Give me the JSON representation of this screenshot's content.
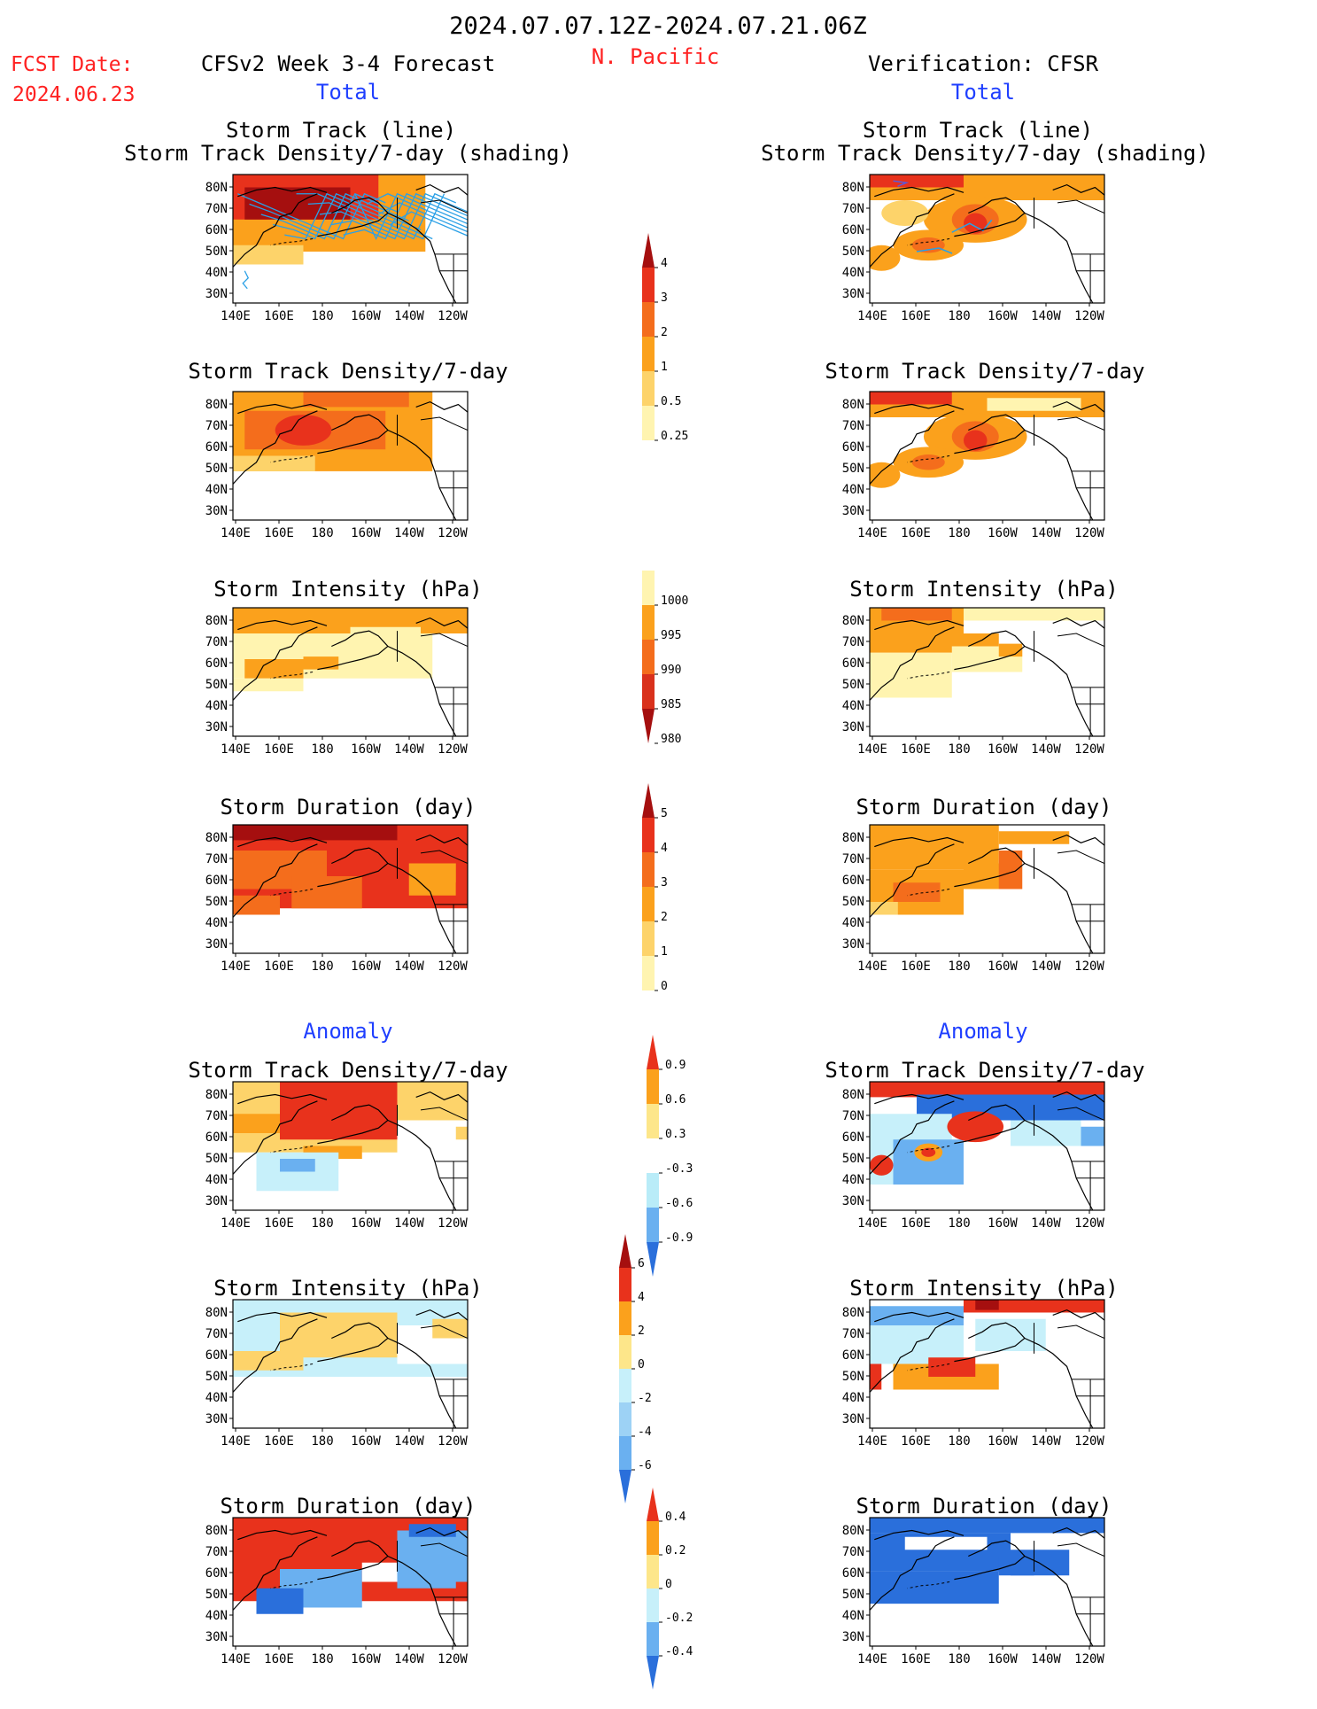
{
  "header": {
    "period": "2024.07.07.12Z-2024.07.21.06Z",
    "region": "N. Pacific",
    "fcst_label": "FCST Date:",
    "fcst_date": "2024.06.23",
    "left_title": "CFSv2 Week 3-4 Forecast",
    "right_title": "Verification: CFSR",
    "total_label": "Total",
    "anomaly_label": "Anomaly"
  },
  "axes": {
    "x_ticks": [
      "140E",
      "160E",
      "180",
      "160W",
      "140W",
      "120W"
    ],
    "y_ticks": [
      "80N",
      "70N",
      "60N",
      "50N",
      "40N",
      "30N"
    ]
  },
  "panel_titles": {
    "row1_line1": "Storm Track (line)",
    "row1_line2": "Storm Track Density/7-day (shading)",
    "density": "Storm Track Density/7-day",
    "intensity": "Storm Intensity (hPa)",
    "duration": "Storm Duration (day)"
  },
  "colorbars": {
    "density": {
      "labels": [
        "4",
        "3",
        "2",
        "1",
        "0.5",
        "0.25"
      ],
      "colors": [
        "#a50f0f",
        "#e8321c",
        "#f46d1c",
        "#fba11c",
        "#fdd36a",
        "#fff4b0"
      ]
    },
    "intensity": {
      "labels": [
        "1000",
        "995",
        "990",
        "985",
        "980"
      ],
      "colors": [
        "#fff4b0",
        "#fba11c",
        "#f46d1c",
        "#d9311c",
        "#a50f0f"
      ]
    },
    "duration": {
      "labels": [
        "5",
        "4",
        "3",
        "2",
        "1",
        "0"
      ],
      "colors": [
        "#a50f0f",
        "#e8321c",
        "#f46d1c",
        "#fba11c",
        "#fdd36a",
        "#fff4b0"
      ]
    },
    "anom_density": {
      "labels": [
        "0.9",
        "0.6",
        "0.3",
        "-0.3",
        "-0.6",
        "-0.9"
      ],
      "colors": [
        "#e8321c",
        "#fba11c",
        "#fde68a",
        "#ffffff",
        "#b9ecf8",
        "#6ab0f0",
        "#2a6fdb"
      ]
    },
    "anom_intensity": {
      "labels": [
        "6",
        "4",
        "2",
        "0",
        "-2",
        "-4",
        "-6"
      ],
      "colors": [
        "#a50f0f",
        "#e8321c",
        "#fba11c",
        "#fde68a",
        "#c7f0fa",
        "#9dd2f5",
        "#6ab0f0",
        "#2a6fdb"
      ]
    },
    "anom_duration": {
      "labels": [
        "0.4",
        "0.2",
        "0",
        "-0.2",
        "-0.4"
      ],
      "colors": [
        "#e8321c",
        "#fba11c",
        "#fde68a",
        "#c7f0fa",
        "#6ab0f0",
        "#2a6fdb"
      ]
    }
  },
  "colors": {
    "red_text": "#ff2222",
    "blue_text": "#1f3fff",
    "track_line": "#2aa0e6"
  }
}
